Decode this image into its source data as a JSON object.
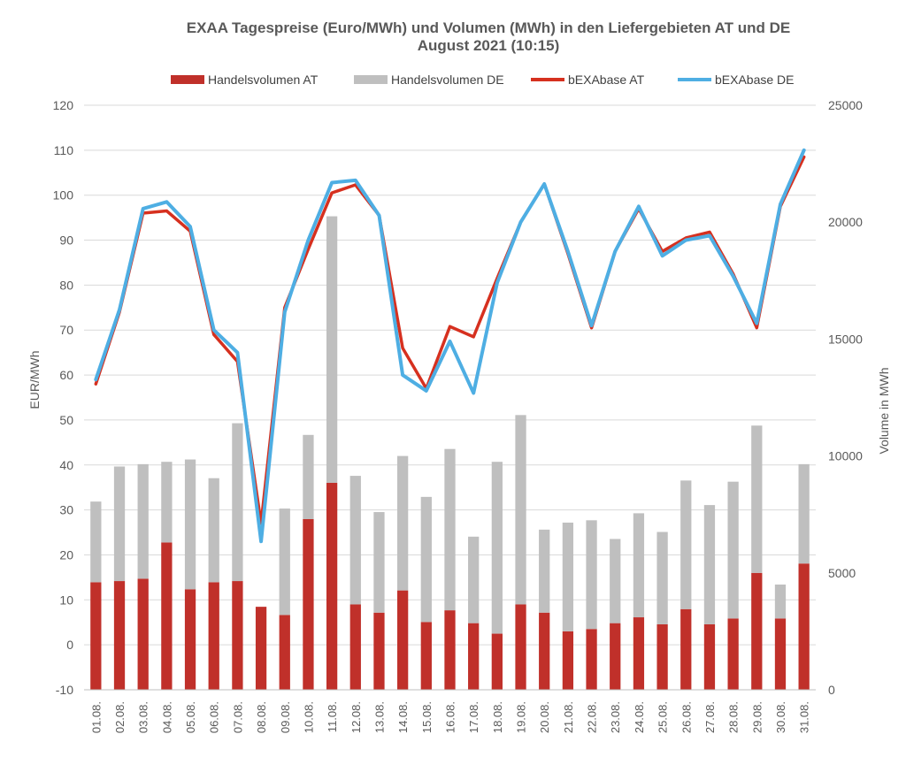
{
  "chart_data": {
    "type": "bar+line",
    "title": "EXAA Tagespreise (Euro/MWh) und Volumen (MWh) in den Liefergebieten AT und DE",
    "subtitle": "August 2021 (10:15)",
    "ylabel_left": "EUR/MWh",
    "ylabel_right": "Volume in MWh",
    "ylim_left": [
      -10,
      120
    ],
    "ylim_right": [
      0,
      25000
    ],
    "yticks_left": [
      "-10",
      "0",
      "10",
      "20",
      "30",
      "40",
      "50",
      "60",
      "70",
      "80",
      "90",
      "100",
      "110",
      "120"
    ],
    "yticks_right": [
      "0",
      "5000",
      "10000",
      "15000",
      "20000",
      "25000"
    ],
    "legend_position": "top",
    "categories": [
      "01.08.",
      "02.08.",
      "03.08.",
      "04.08.",
      "05.08.",
      "06.08.",
      "07.08.",
      "08.08.",
      "09.08.",
      "10.08.",
      "11.08.",
      "12.08.",
      "13.08.",
      "14.08.",
      "15.08.",
      "16.08.",
      "17.08.",
      "18.08.",
      "19.08.",
      "20.08.",
      "21.08.",
      "22.08.",
      "23.08.",
      "24.08.",
      "25.08.",
      "26.08.",
      "27.08.",
      "28.08.",
      "29.08.",
      "30.08.",
      "31.08."
    ],
    "series": [
      {
        "name": "Handelsvolumen AT",
        "kind": "bar",
        "axis": "right",
        "color": "#c0302a",
        "values": [
          4600,
          4650,
          4750,
          6300,
          4300,
          4600,
          4650,
          3550,
          3200,
          7300,
          8850,
          3650,
          3300,
          4250,
          2900,
          3400,
          2850,
          2400,
          3650,
          3300,
          2500,
          2600,
          2850,
          3100,
          2800,
          3450,
          2800,
          3050,
          5000,
          3050,
          5400
        ]
      },
      {
        "name": "Handelsvolumen DE",
        "kind": "bar",
        "axis": "right",
        "color": "#bfbfbf",
        "values": [
          3450,
          4900,
          4900,
          3450,
          5550,
          4450,
          6750,
          0,
          4550,
          3600,
          11400,
          5500,
          4300,
          5750,
          5350,
          6900,
          3700,
          7350,
          8100,
          3550,
          4650,
          4650,
          3600,
          4450,
          3950,
          5500,
          5100,
          5850,
          6300,
          1450,
          4250
        ]
      },
      {
        "name": "bEXAbase AT",
        "kind": "line",
        "axis": "left",
        "color": "#d6301f",
        "values": [
          58,
          74,
          96,
          96.5,
          92,
          69,
          63,
          27,
          75,
          88,
          100.5,
          102.3,
          95.5,
          66,
          57,
          70.8,
          68.5,
          81.5,
          94,
          102.5,
          87,
          70.5,
          87.5,
          97,
          87.5,
          90.5,
          91.8,
          82.5,
          70.5,
          97.5,
          108.5
        ]
      },
      {
        "name": "bEXAbase DE",
        "kind": "line",
        "axis": "left",
        "color": "#4eaee3",
        "values": [
          59,
          74.5,
          97,
          98.5,
          93,
          70,
          65,
          23,
          74,
          90,
          102.8,
          103.3,
          95.5,
          60,
          56.5,
          67.5,
          56,
          80.5,
          94,
          102.5,
          87.5,
          71,
          87.5,
          97.5,
          86.5,
          90,
          91,
          82,
          71.5,
          98,
          110
        ]
      }
    ]
  }
}
